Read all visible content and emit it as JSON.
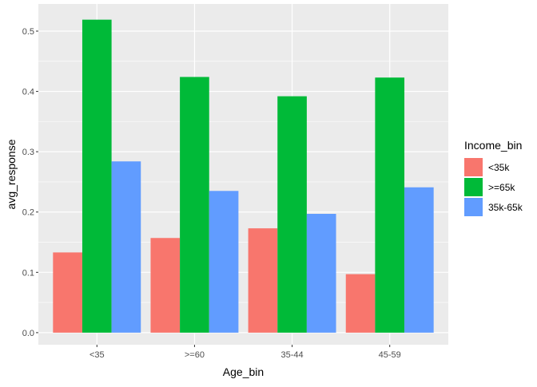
{
  "chart_data": {
    "type": "bar",
    "xlabel": "Age_bin",
    "ylabel": "avg_response",
    "categories": [
      "<35",
      ">=60",
      "35-44",
      "45-59"
    ],
    "ylim": [
      -0.02,
      0.545
    ],
    "yticks": [
      0.0,
      0.1,
      0.2,
      0.3,
      0.4,
      0.5
    ],
    "ytick_labels": [
      "0.0",
      "0.1",
      "0.2",
      "0.3",
      "0.4",
      "0.5"
    ],
    "grid": true,
    "legend": {
      "title": "Income_bin",
      "position": "right"
    },
    "series": [
      {
        "name": "<35k",
        "color": "#F8766D",
        "values": [
          0.133,
          0.157,
          0.173,
          0.097
        ]
      },
      {
        "name": ">=65k",
        "color": "#00BA38",
        "values": [
          0.519,
          0.424,
          0.392,
          0.423
        ]
      },
      {
        "name": "35k-65k",
        "color": "#619CFF",
        "values": [
          0.284,
          0.235,
          0.197,
          0.241
        ]
      }
    ],
    "panel_background": "#EBEBEB",
    "grid_color": "#FFFFFF"
  }
}
